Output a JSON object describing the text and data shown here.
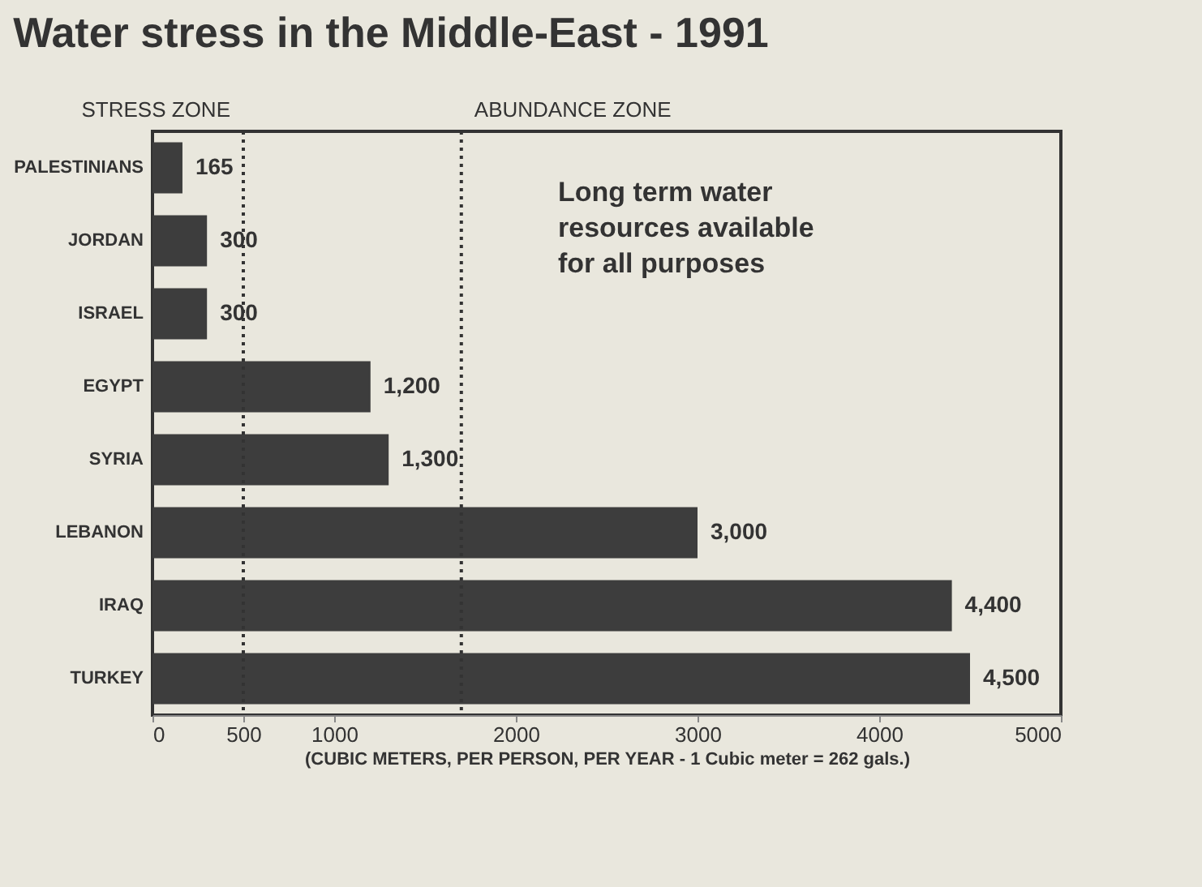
{
  "chart_data": {
    "type": "bar",
    "orientation": "horizontal",
    "title": "Water stress in the Middle-East - 1991",
    "xlabel": "(CUBIC METERS, PER PERSON, PER YEAR - 1 Cubic meter = 262 gals.)",
    "categories": [
      "PALESTINIANS",
      "JORDAN",
      "ISRAEL",
      "EGYPT",
      "SYRIA",
      "LEBANON",
      "IRAQ",
      "TURKEY"
    ],
    "values": [
      165,
      300,
      300,
      1200,
      1300,
      3000,
      4400,
      4500
    ],
    "value_labels": [
      "165",
      "300",
      "300",
      "1,200",
      "1,300",
      "3,000",
      "4,400",
      "4,500"
    ],
    "color": "#3d3d3d",
    "xlim": [
      0,
      5000
    ],
    "xticks": [
      0,
      500,
      1000,
      2000,
      3000,
      4000,
      5000
    ],
    "ref_lines": [
      {
        "axis": "x",
        "value": 500,
        "label": "STRESS ZONE",
        "line_style": "dotted"
      },
      {
        "axis": "x",
        "value": 1700,
        "label": "ABUNDANCE ZONE",
        "line_style": "dotted"
      }
    ],
    "annotations": [
      "Long term water resources available for all purposes"
    ],
    "grid": false
  }
}
